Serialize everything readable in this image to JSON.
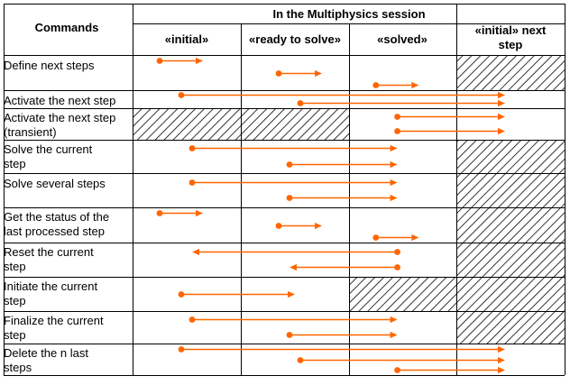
{
  "header": {
    "commands_label": "Commands",
    "session_label": "In the Multiphysics session",
    "states": [
      "«initial»",
      "«ready to solve»",
      "«solved»"
    ],
    "next_state": [
      "«initial» next",
      "step"
    ]
  },
  "rows": [
    {
      "label": [
        "Define next steps"
      ],
      "hatched": [
        3
      ],
      "arrows": [
        {
          "from": 0.25,
          "to": 0.65,
          "dir": "right"
        },
        {
          "from": 1.35,
          "to": 1.75,
          "dir": "right"
        },
        {
          "from": 2.25,
          "to": 2.65,
          "dir": "right"
        }
      ]
    },
    {
      "label": [
        "Activate the next step"
      ],
      "hatched": [],
      "arrows": [
        {
          "from": 0.45,
          "to": 3.45,
          "dir": "right"
        },
        {
          "from": 1.55,
          "to": 3.45,
          "dir": "right"
        }
      ]
    },
    {
      "label": [
        "Activate the next step",
        "(transient)"
      ],
      "hatched": [
        0,
        1
      ],
      "arrows": [
        {
          "from": 2.45,
          "to": 3.45,
          "dir": "right"
        },
        {
          "from": 2.45,
          "to": 3.45,
          "dir": "right"
        }
      ]
    },
    {
      "label": [
        "Solve the current",
        "step"
      ],
      "hatched": [
        3
      ],
      "arrows": [
        {
          "from": 0.55,
          "to": 2.45,
          "dir": "right"
        },
        {
          "from": 1.45,
          "to": 2.45,
          "dir": "right"
        }
      ]
    },
    {
      "label": [
        "Solve several steps"
      ],
      "hatched": [
        3
      ],
      "arrows": [
        {
          "from": 0.55,
          "to": 2.45,
          "dir": "right"
        },
        {
          "from": 1.45,
          "to": 2.45,
          "dir": "right"
        }
      ]
    },
    {
      "label": [
        "Get the status of the",
        "last processed step"
      ],
      "hatched": [
        3
      ],
      "arrows": [
        {
          "from": 0.25,
          "to": 0.65,
          "dir": "right"
        },
        {
          "from": 1.35,
          "to": 1.75,
          "dir": "right"
        },
        {
          "from": 2.25,
          "to": 2.65,
          "dir": "right"
        }
      ]
    },
    {
      "label": [
        "Reset the current",
        "step"
      ],
      "hatched": [
        3
      ],
      "arrows": [
        {
          "from": 2.45,
          "to": 0.55,
          "dir": "left"
        },
        {
          "from": 2.45,
          "to": 1.45,
          "dir": "left"
        }
      ]
    },
    {
      "label": [
        "Initiate the current",
        "step"
      ],
      "hatched": [
        2,
        3
      ],
      "arrows": [
        {
          "from": 0.45,
          "to": 1.5,
          "dir": "right"
        }
      ]
    },
    {
      "label": [
        "Finalize the current",
        "step"
      ],
      "hatched": [
        3
      ],
      "arrows": [
        {
          "from": 0.55,
          "to": 2.45,
          "dir": "right"
        },
        {
          "from": 1.45,
          "to": 2.45,
          "dir": "right"
        }
      ]
    },
    {
      "label": [
        "Delete the n last",
        "steps"
      ],
      "hatched": [],
      "arrows": [
        {
          "from": 0.45,
          "to": 3.45,
          "dir": "right"
        },
        {
          "from": 1.55,
          "to": 3.45,
          "dir": "right"
        },
        {
          "from": 2.45,
          "to": 3.45,
          "dir": "right"
        }
      ]
    }
  ],
  "colors": {
    "arrow": "#ff6600",
    "grid": "#000000",
    "text": "#000000"
  }
}
